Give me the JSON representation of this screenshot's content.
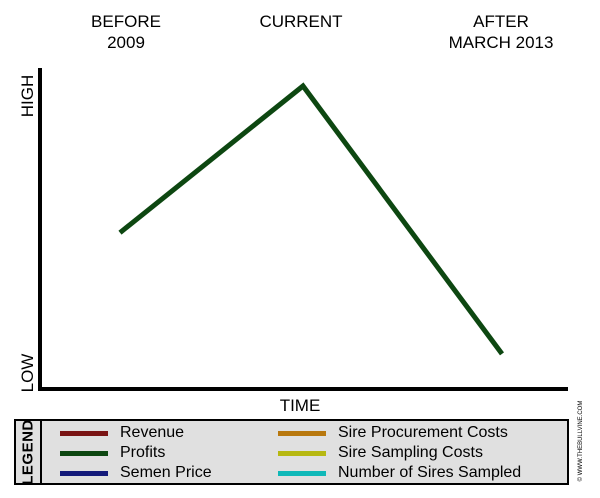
{
  "chart_data": {
    "type": "line",
    "phases": [
      "BEFORE\n2009",
      "CURRENT",
      "AFTER\nMARCH 2013"
    ],
    "xlabel": "TIME",
    "y_labels": {
      "high": "HIGH",
      "low": "LOW"
    },
    "ylim": [
      0,
      100
    ],
    "series": [
      {
        "name": "Profits",
        "color": "#0d4711",
        "values": [
          48,
          100,
          5
        ]
      }
    ],
    "legend": {
      "title": "LEGEND",
      "items": [
        {
          "label": "Revenue",
          "color": "#7a1414"
        },
        {
          "label": "Profits",
          "color": "#0d4711"
        },
        {
          "label": "Semen Price",
          "color": "#141a7a"
        },
        {
          "label": "Sire Procurement Costs",
          "color": "#b8780e"
        },
        {
          "label": "Sire Sampling Costs",
          "color": "#b7b812"
        },
        {
          "label": "Number of Sires Sampled",
          "color": "#10b8b8"
        }
      ]
    },
    "axis_color": "#000000"
  },
  "credit": "© WWW.THEBULLVINE.COM"
}
